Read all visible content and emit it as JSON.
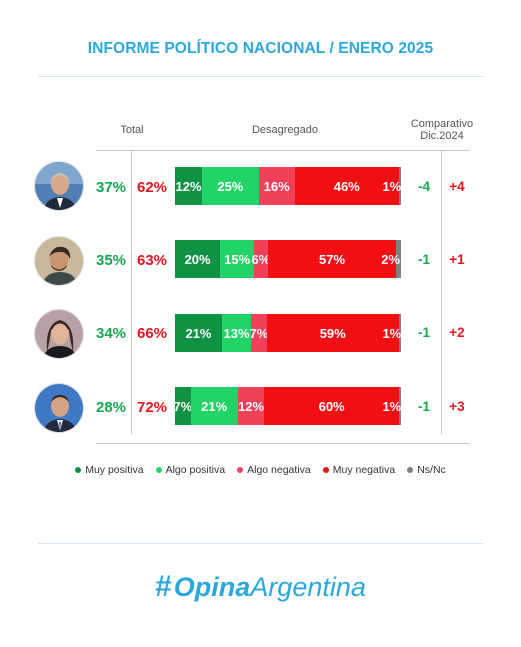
{
  "title": "INFORME POLÍTICO NACIONAL / ENERO 2025",
  "headers": {
    "total": "Total",
    "disaggregated": "Desagregado",
    "comparative_line1": "Comparativo",
    "comparative_line2": "Dic.2024"
  },
  "colors": {
    "muy_positiva": "#109245",
    "algo_positiva": "#22d468",
    "algo_negativa": "#f0405a",
    "muy_negativa": "#f10f14",
    "ns_nc": "#7f7f7f",
    "accent": "#2aa8dc"
  },
  "chart_data": {
    "type": "bar",
    "orientation": "horizontal-stacked",
    "series_names": [
      "Muy positiva",
      "Algo positiva",
      "Algo negativa",
      "Muy negativa",
      "Ns/Nc"
    ],
    "rows": [
      {
        "total_positive": "37%",
        "total_negative": "62%",
        "values": [
          12,
          25,
          16,
          46,
          1
        ],
        "labels": [
          "12%",
          "25%",
          "16%",
          "46%",
          "1%"
        ],
        "change_positive": "-4",
        "change_negative": "+4"
      },
      {
        "total_positive": "35%",
        "total_negative": "63%",
        "values": [
          20,
          15,
          6,
          57,
          2
        ],
        "labels": [
          "20%",
          "15%",
          "6%",
          "57%",
          "2%"
        ],
        "change_positive": "-1",
        "change_negative": "+1"
      },
      {
        "total_positive": "34%",
        "total_negative": "66%",
        "values": [
          21,
          13,
          7,
          59,
          1
        ],
        "labels": [
          "21%",
          "13%",
          "7%",
          "59%",
          "1%"
        ],
        "change_positive": "-1",
        "change_negative": "+2"
      },
      {
        "total_positive": "28%",
        "total_negative": "72%",
        "values": [
          7,
          21,
          12,
          60,
          1
        ],
        "labels": [
          "7%",
          "21%",
          "12%",
          "60%",
          "1%"
        ],
        "change_positive": "-1",
        "change_negative": "+3"
      }
    ]
  },
  "legend": [
    "Muy positiva",
    "Algo positiva",
    "Algo negativa",
    "Muy negativa",
    "Ns/Nc"
  ],
  "logo": {
    "hash": "#",
    "bold": "Opina",
    "light": "Argentina"
  }
}
